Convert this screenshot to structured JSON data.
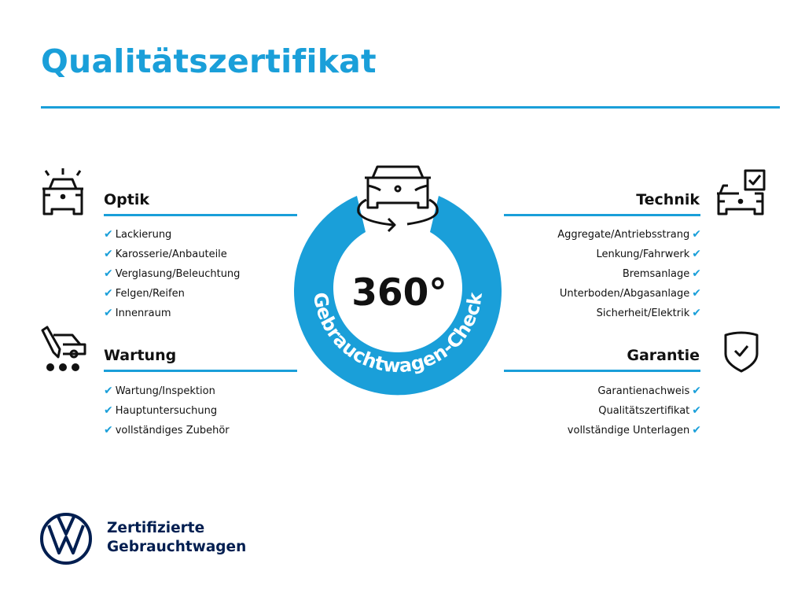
{
  "title": "Qualitätszertifikat",
  "colors": {
    "accent": "#1a9fd9",
    "brand_navy": "#001e50",
    "text": "#111111"
  },
  "badge": {
    "value": "360°",
    "ring_text": "Gebrauchtwagen-Check",
    "icon": "car-rotate-icon"
  },
  "sections": {
    "optik": {
      "heading": "Optik",
      "icon": "car-lights-icon",
      "items": [
        "Lackierung",
        "Karosserie/Anbauteile",
        "Verglasung/Beleuchtung",
        "Felgen/Reifen",
        "Innenraum"
      ]
    },
    "wartung": {
      "heading": "Wartung",
      "icon": "service-car-icon",
      "items": [
        "Wartung/Inspektion",
        "Hauptuntersuchung",
        "vollständiges Zubehör"
      ]
    },
    "technik": {
      "heading": "Technik",
      "icon": "car-checkbox-icon",
      "items": [
        "Aggregate/Antriebsstrang",
        "Lenkung/Fahrwerk",
        "Bremsanlage",
        "Unterboden/Abgasanlage",
        "Sicherheit/Elektrik"
      ]
    },
    "garantie": {
      "heading": "Garantie",
      "icon": "shield-check-icon",
      "items": [
        "Garantienachweis",
        "Qualitätszertifikat",
        "vollständige Unterlagen"
      ]
    }
  },
  "check_glyph": "✔",
  "footer": {
    "logo": "VW",
    "line1": "Zertifizierte",
    "line2": "Gebrauchtwagen"
  }
}
